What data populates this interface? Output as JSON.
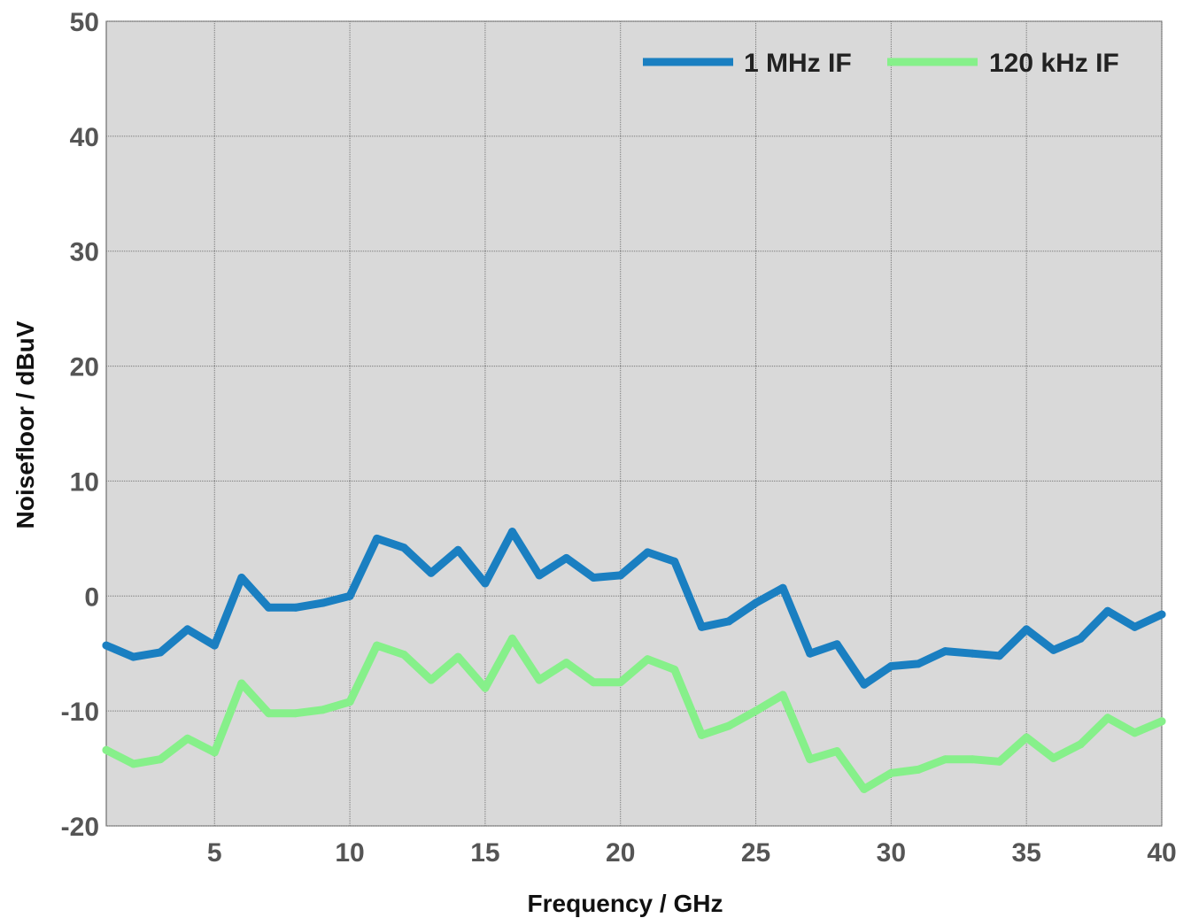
{
  "chart_data": {
    "type": "line",
    "xlabel": "Frequency / GHz",
    "ylabel": "Noisefloor / dBuV",
    "xlim": [
      1,
      40
    ],
    "ylim": [
      -20,
      50
    ],
    "x_ticks": [
      5,
      10,
      15,
      20,
      25,
      30,
      35,
      40
    ],
    "y_ticks": [
      -20,
      -10,
      0,
      10,
      20,
      30,
      40,
      50
    ],
    "grid": true,
    "background_color": "#d9d9d9",
    "legend_position": "top-right",
    "x": [
      1,
      2,
      3,
      4,
      5,
      6,
      7,
      8,
      9,
      10,
      11,
      12,
      13,
      14,
      15,
      16,
      17,
      18,
      19,
      20,
      21,
      22,
      23,
      24,
      25,
      26,
      27,
      28,
      29,
      30,
      31,
      32,
      33,
      34,
      35,
      36,
      37,
      38,
      39,
      40
    ],
    "series": [
      {
        "name": "1 MHz IF",
        "color": "#1a7fc1",
        "values": [
          -4.3,
          -5.3,
          -4.9,
          -2.9,
          -4.3,
          1.6,
          -1.0,
          -1.0,
          -0.6,
          0.0,
          5.0,
          4.2,
          2.0,
          4.0,
          1.1,
          5.6,
          1.8,
          3.3,
          1.6,
          1.8,
          3.8,
          3.0,
          -2.7,
          -2.2,
          -0.6,
          0.7,
          -5.0,
          -4.2,
          -7.7,
          -6.1,
          -5.9,
          -4.8,
          -5.0,
          -5.2,
          -2.9,
          -4.7,
          -3.7,
          -1.3,
          -2.7,
          -1.6
        ]
      },
      {
        "name": "120 kHz IF",
        "color": "#86f08a",
        "values": [
          -13.4,
          -14.6,
          -14.2,
          -12.4,
          -13.6,
          -7.6,
          -10.2,
          -10.2,
          -9.9,
          -9.2,
          -4.3,
          -5.1,
          -7.3,
          -5.3,
          -8.0,
          -3.7,
          -7.3,
          -5.8,
          -7.5,
          -7.5,
          -5.5,
          -6.4,
          -12.1,
          -11.3,
          -10.0,
          -8.6,
          -14.2,
          -13.5,
          -16.8,
          -15.4,
          -15.1,
          -14.2,
          -14.2,
          -14.4,
          -12.3,
          -14.1,
          -12.9,
          -10.6,
          -11.9,
          -10.9
        ]
      }
    ]
  }
}
